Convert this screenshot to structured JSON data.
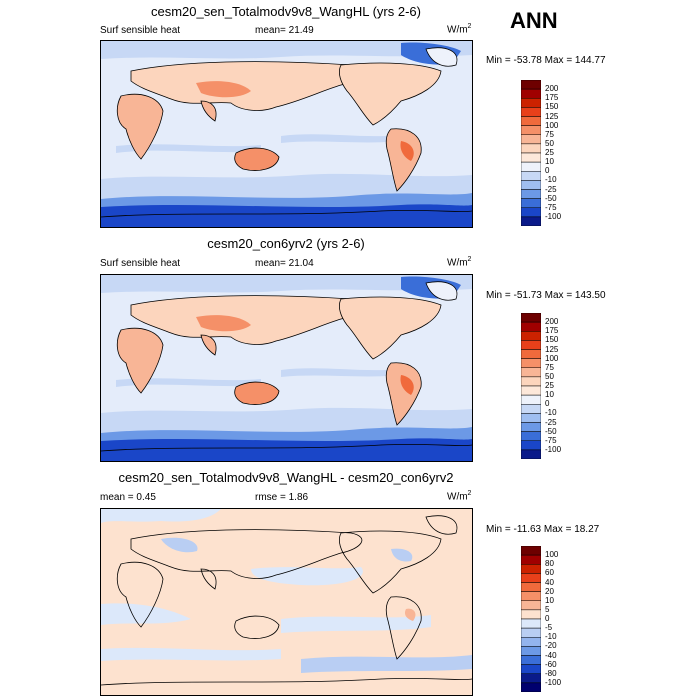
{
  "season": "ANN",
  "panels": [
    {
      "title": "cesm20_sen_Totalmodv9v8_WangHL (yrs 2-6)",
      "left_label": "Surf sensible heat",
      "center_label": "mean=  21.49",
      "units_base": "W/m",
      "units_exp": "2",
      "minmax": "Min = -53.78 Max = 144.77",
      "colorbar": [
        "200",
        "175",
        "150",
        "125",
        "100",
        "75",
        "50",
        "25",
        "10",
        "0",
        "-10",
        "-25",
        "-50",
        "-75",
        "-100"
      ]
    },
    {
      "title": "cesm20_con6yrv2 (yrs 2-6)",
      "left_label": "Surf sensible heat",
      "center_label": "mean=  21.04",
      "units_base": "W/m",
      "units_exp": "2",
      "minmax": "Min = -51.73 Max = 143.50",
      "colorbar": [
        "200",
        "175",
        "150",
        "125",
        "100",
        "75",
        "50",
        "25",
        "10",
        "0",
        "-10",
        "-25",
        "-50",
        "-75",
        "-100"
      ]
    },
    {
      "title": "cesm20_sen_Totalmodv9v8_WangHL - cesm20_con6yrv2",
      "left_label": "mean =   0.45",
      "center_label": "rmse =   1.86",
      "units_base": "W/m",
      "units_exp": "2",
      "minmax": "Min = -11.63 Max =  18.27",
      "colorbar": [
        "100",
        "80",
        "60",
        "40",
        "20",
        "10",
        "5",
        "0",
        "-5",
        "-10",
        "-20",
        "-40",
        "-60",
        "-80",
        "-100"
      ]
    }
  ],
  "colors": {
    "full": [
      "#6e0000",
      "#a00000",
      "#cc2200",
      "#e8401a",
      "#f06a3c",
      "#f59068",
      "#f8b596",
      "#fcd5bd",
      "#fde8da",
      "#eef2fb",
      "#c7d8f5",
      "#9fbef0",
      "#6c99e6",
      "#3a6ed8",
      "#1a46c8",
      "#0a1a8a"
    ],
    "diff": [
      "#6e0000",
      "#a00000",
      "#cc2200",
      "#e8401a",
      "#f06a3c",
      "#f59068",
      "#f8b596",
      "#fde2cf",
      "#dce8fa",
      "#b9cef3",
      "#93b4ee",
      "#6c99e6",
      "#3a6ed8",
      "#1a46c8",
      "#0a1a8a",
      "#00006e"
    ]
  }
}
